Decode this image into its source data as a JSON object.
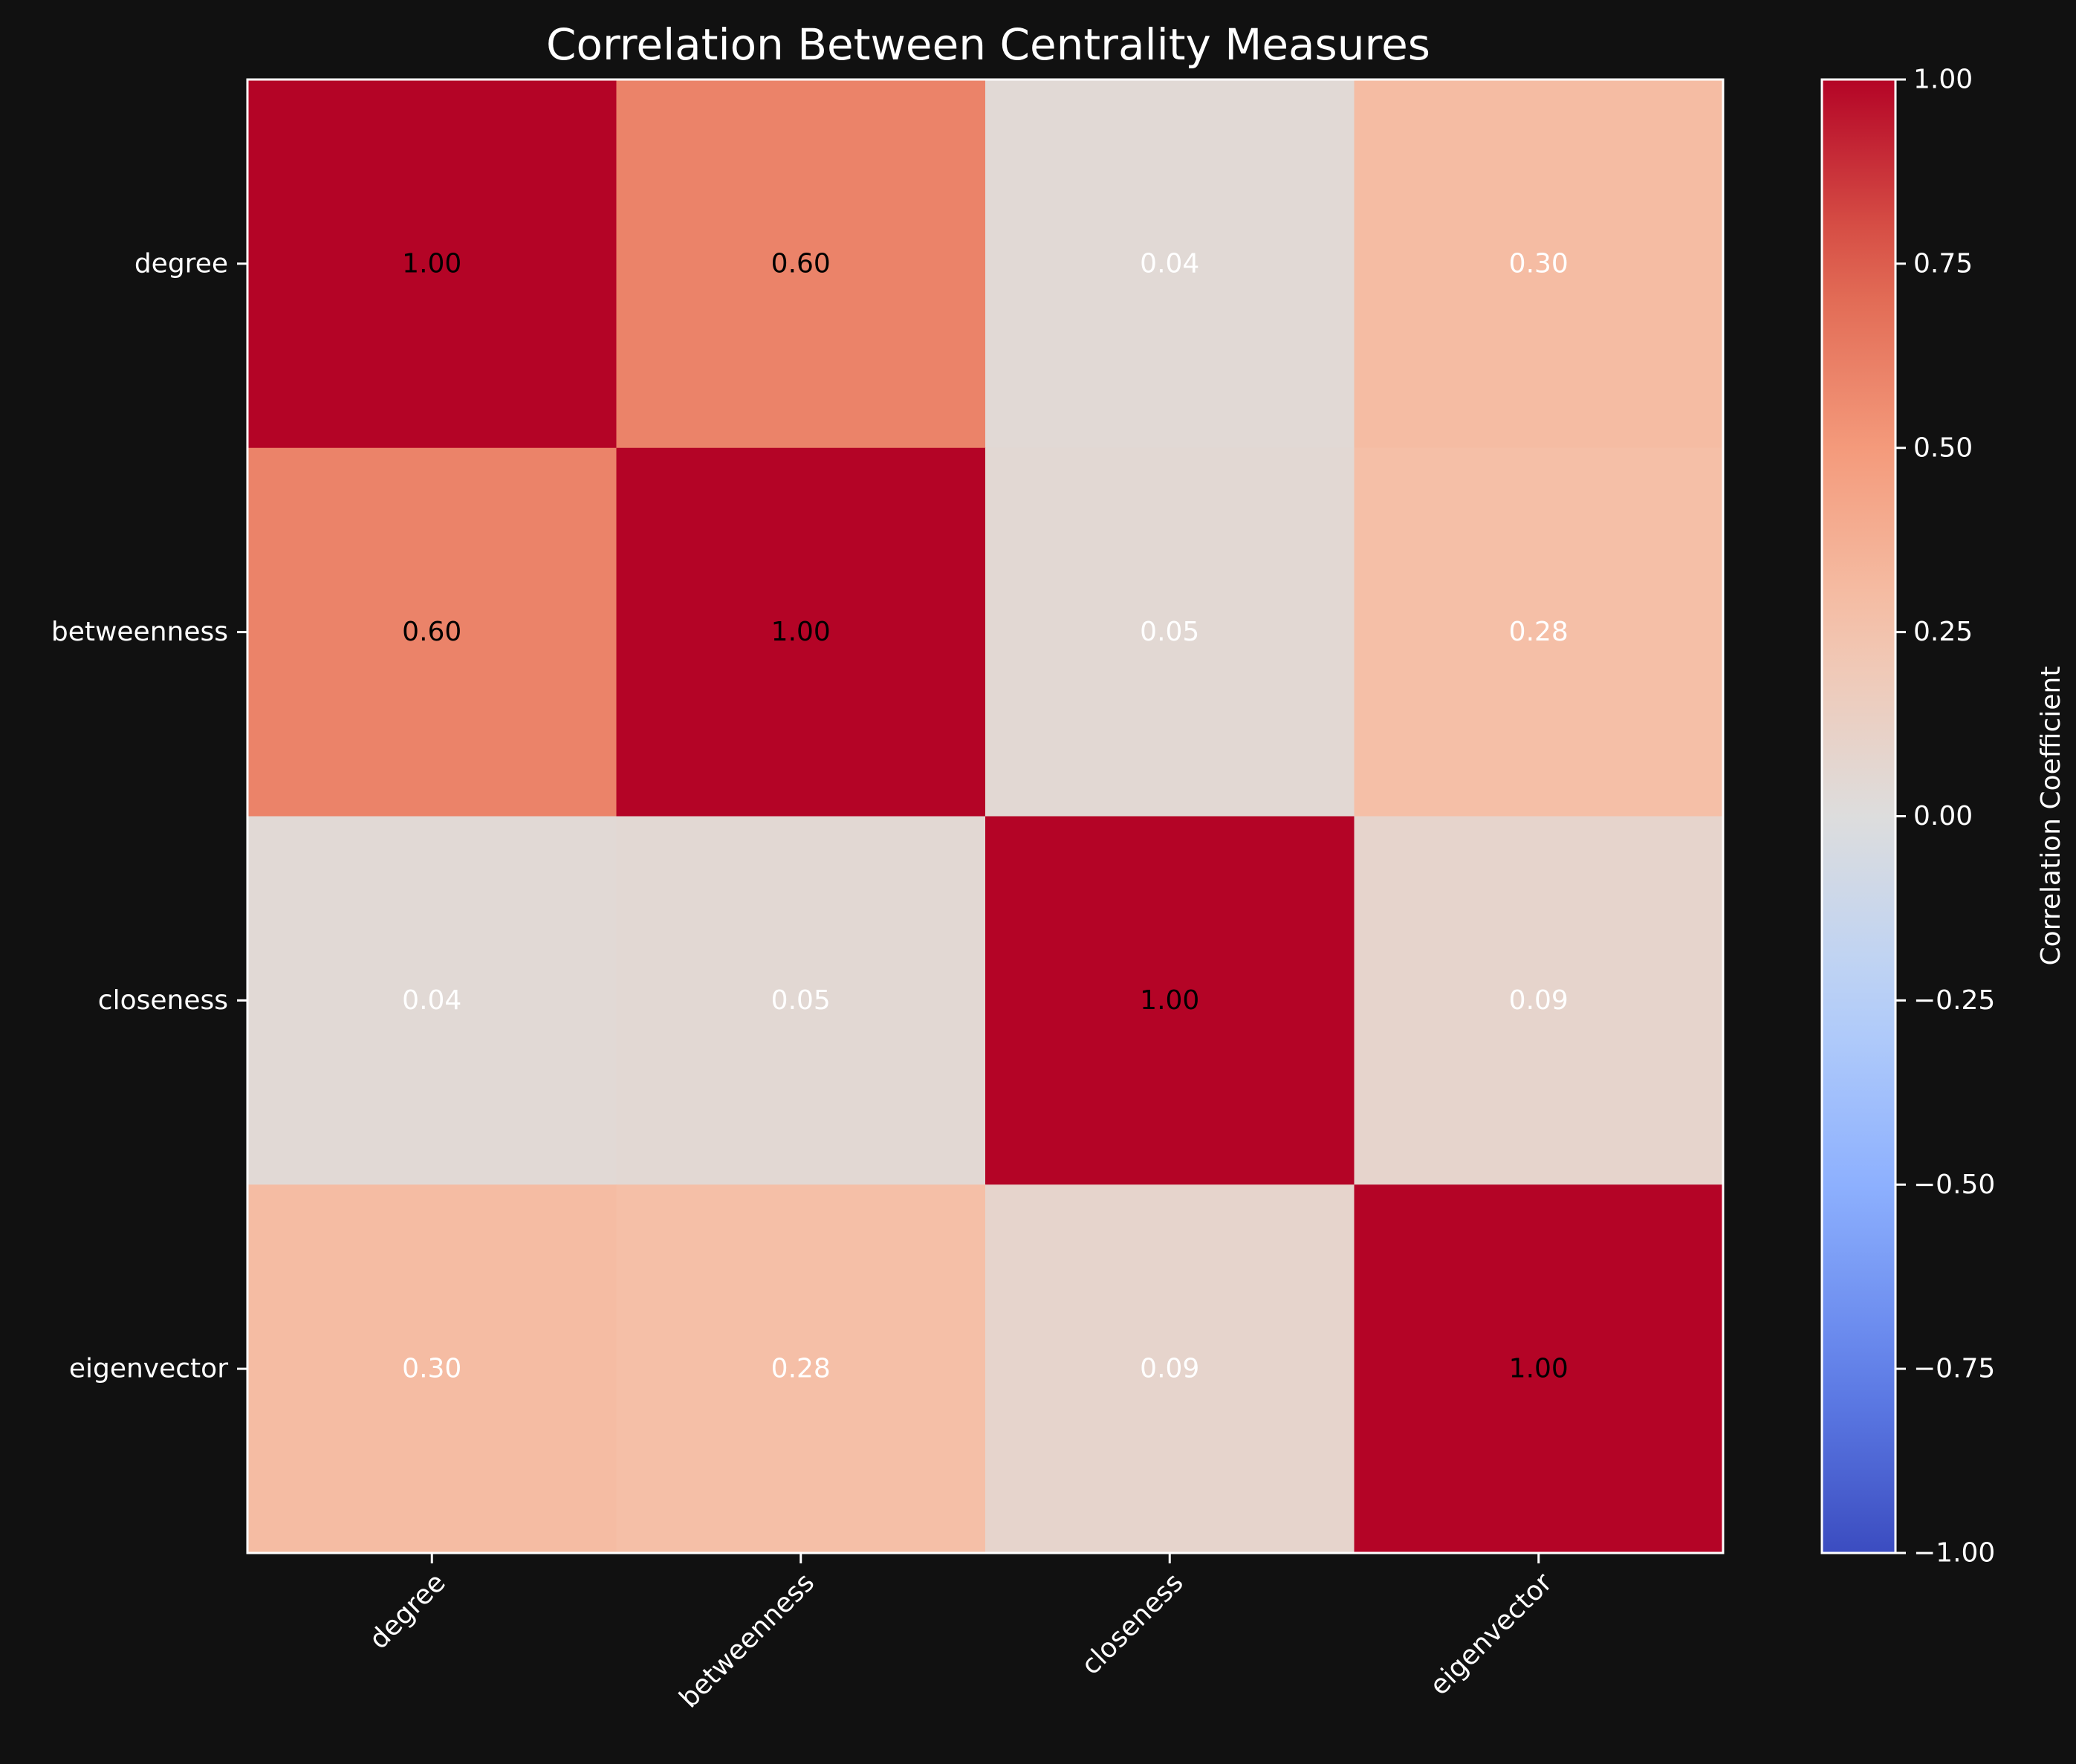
{
  "chart_data": {
    "type": "heatmap",
    "title": "Correlation Between Centrality Measures",
    "rows": [
      "degree",
      "betweenness",
      "closeness",
      "eigenvector"
    ],
    "columns": [
      "degree",
      "betweenness",
      "closeness",
      "eigenvector"
    ],
    "values": [
      [
        1.0,
        0.6,
        0.04,
        0.3
      ],
      [
        0.6,
        1.0,
        0.05,
        0.28
      ],
      [
        0.04,
        0.05,
        1.0,
        0.09
      ],
      [
        0.3,
        0.28,
        0.09,
        1.0
      ]
    ],
    "value_labels": [
      [
        "1.00",
        "0.60",
        "0.04",
        "0.30"
      ],
      [
        "0.60",
        "1.00",
        "0.05",
        "0.28"
      ],
      [
        "0.04",
        "0.05",
        "1.00",
        "0.09"
      ],
      [
        "0.30",
        "0.28",
        "0.09",
        "1.00"
      ]
    ],
    "colormap": "coolwarm",
    "vmin": -1.0,
    "vmax": 1.0,
    "colorbar": {
      "label": "Correlation Coefficient",
      "ticks": [
        1.0,
        0.75,
        0.5,
        0.25,
        0.0,
        -0.25,
        -0.5,
        -0.75,
        -1.0
      ],
      "tick_labels": [
        "1.00",
        "0.75",
        "0.50",
        "0.25",
        "0.00",
        "−0.25",
        "−0.50",
        "−0.75",
        "−1.00"
      ]
    },
    "grid": false,
    "colors": {
      "background": "#111111",
      "text": "#ffffff",
      "cell_text_high": "#000000",
      "cell_text_low": "#ffffff"
    }
  }
}
